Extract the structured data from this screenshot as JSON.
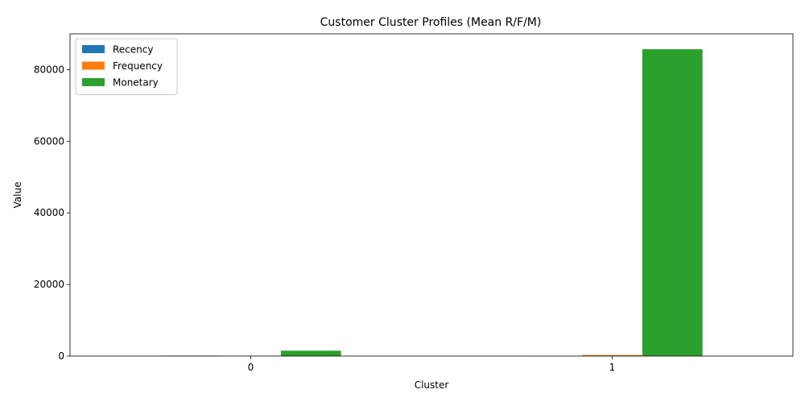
{
  "chart_data": {
    "type": "bar",
    "title": "Customer Cluster Profiles (Mean R/F/M)",
    "xlabel": "Cluster",
    "ylabel": "Value",
    "categories": [
      "0",
      "1"
    ],
    "series": [
      {
        "name": "Recency",
        "color": "#1f77b4",
        "values": [
          120,
          15
        ]
      },
      {
        "name": "Frequency",
        "color": "#ff7f0e",
        "values": [
          60,
          300
        ]
      },
      {
        "name": "Monetary",
        "color": "#2ca02c",
        "values": [
          1500,
          85700
        ]
      }
    ],
    "yticks": [
      0,
      20000,
      40000,
      60000,
      80000
    ],
    "ylim": [
      0,
      90000
    ],
    "grid": false,
    "legend_position": "top-left"
  }
}
